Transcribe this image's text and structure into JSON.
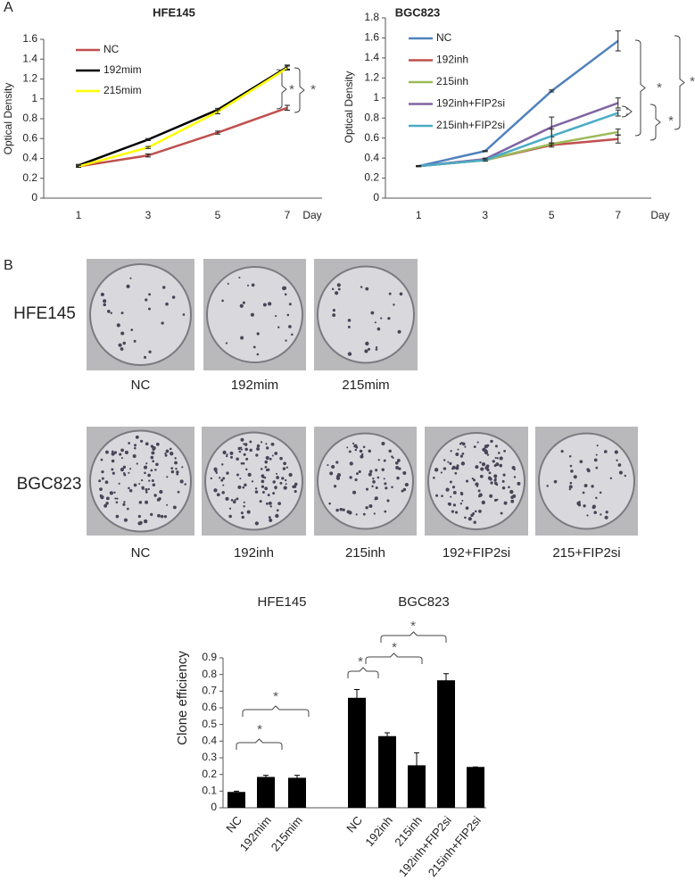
{
  "panel_labels": [
    "A",
    "B"
  ],
  "chart_data": [
    {
      "type": "line",
      "title": "HFE145",
      "y_label": "Optical Density",
      "x_label": "Day",
      "categories": [
        "1",
        "3",
        "5",
        "7"
      ],
      "ylim": [
        0,
        1.6
      ],
      "yticks": [
        0,
        0.2,
        0.4,
        0.6,
        0.8,
        1,
        1.2,
        1.4,
        1.6
      ],
      "series": [
        {
          "name": "NC",
          "color": "#c0504d",
          "values": [
            0.32,
            0.43,
            0.66,
            0.91
          ],
          "errors": [
            0.01,
            0.015,
            0.015,
            0.025
          ]
        },
        {
          "name": "192mim",
          "color": "#000000",
          "values": [
            0.33,
            0.59,
            0.89,
            1.32
          ],
          "errors": [
            0.01,
            0.01,
            0.015,
            0.02
          ]
        },
        {
          "name": "215mim",
          "color": "#ffff00",
          "values": [
            0.32,
            0.51,
            0.87,
            1.31
          ],
          "errors": [
            0.01,
            0.01,
            0.02,
            0.02
          ]
        }
      ],
      "annotations": [
        "*",
        "*"
      ]
    },
    {
      "type": "line",
      "title": "BGC823",
      "y_label": "Optical Density",
      "x_label": "Day",
      "categories": [
        "1",
        "3",
        "5",
        "7"
      ],
      "ylim": [
        0,
        1.8
      ],
      "yticks": [
        0,
        0.2,
        0.4,
        0.6,
        0.8,
        1,
        1.2,
        1.4,
        1.6,
        1.8
      ],
      "series": [
        {
          "name": "NC",
          "color": "#4f81bd",
          "values": [
            0.32,
            0.47,
            1.07,
            1.57
          ],
          "errors": [
            0.005,
            0.005,
            0.01,
            0.1
          ]
        },
        {
          "name": "192inh",
          "color": "#c0504d",
          "values": [
            0.32,
            0.38,
            0.53,
            0.59
          ],
          "errors": [
            0.005,
            0.01,
            0.02,
            0.04
          ]
        },
        {
          "name": "215inh",
          "color": "#9bbb59",
          "values": [
            0.32,
            0.38,
            0.54,
            0.66
          ],
          "errors": [
            0.005,
            0.01,
            0.01,
            0.03
          ]
        },
        {
          "name": "192inh+FIP2si",
          "color": "#8064a2",
          "values": [
            0.32,
            0.39,
            0.71,
            0.95
          ],
          "errors": [
            0.005,
            0.01,
            0.1,
            0.05
          ]
        },
        {
          "name": "215inh+FIP2si",
          "color": "#4bacc6",
          "values": [
            0.32,
            0.38,
            0.62,
            0.85
          ],
          "errors": [
            0.005,
            0.01,
            0.07,
            0.03
          ]
        }
      ],
      "annotations": [
        "*",
        "*",
        "*"
      ]
    },
    {
      "type": "bar",
      "y_label": "Clone efficiency",
      "color": "#000000",
      "ylim": [
        0,
        0.9
      ],
      "yticks": [
        0,
        0.1,
        0.2,
        0.3,
        0.4,
        0.5,
        0.6,
        0.7,
        0.8,
        0.9
      ],
      "groups": [
        {
          "name": "HFE145",
          "categories": [
            "NC",
            "192mim",
            "215mim"
          ],
          "values": [
            0.095,
            0.185,
            0.18
          ],
          "errors": [
            0.005,
            0.01,
            0.015
          ]
        },
        {
          "name": "BGC823",
          "categories": [
            "NC",
            "192inh",
            "215inh",
            "192inh+FIP2si",
            "215inh+FIP2si"
          ],
          "values": [
            0.66,
            0.43,
            0.255,
            0.765,
            0.245
          ],
          "errors": [
            0.05,
            0.02,
            0.075,
            0.04,
            0
          ]
        }
      ],
      "annotations": [
        "*",
        "*",
        "*",
        "*",
        "*"
      ]
    }
  ],
  "photos": {
    "rows": [
      {
        "label": "HFE145",
        "captions": [
          "NC",
          "192mim",
          "215mim"
        ]
      },
      {
        "label": "BGC823",
        "captions": [
          "NC",
          "192inh",
          "215inh",
          "192+FIP2si",
          "215+FIP2si"
        ]
      }
    ]
  }
}
